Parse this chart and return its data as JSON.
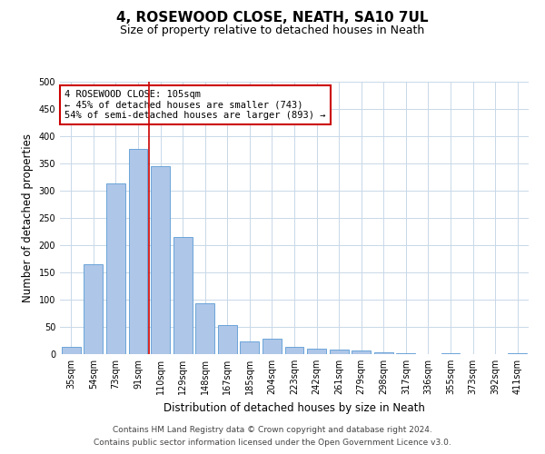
{
  "title": "4, ROSEWOOD CLOSE, NEATH, SA10 7UL",
  "subtitle": "Size of property relative to detached houses in Neath",
  "xlabel": "Distribution of detached houses by size in Neath",
  "ylabel": "Number of detached properties",
  "footer_line1": "Contains HM Land Registry data © Crown copyright and database right 2024.",
  "footer_line2": "Contains public sector information licensed under the Open Government Licence v3.0.",
  "annotation_line1": "4 ROSEWOOD CLOSE: 105sqm",
  "annotation_line2": "← 45% of detached houses are smaller (743)",
  "annotation_line3": "54% of semi-detached houses are larger (893) →",
  "bar_labels": [
    "35sqm",
    "54sqm",
    "73sqm",
    "91sqm",
    "110sqm",
    "129sqm",
    "148sqm",
    "167sqm",
    "185sqm",
    "204sqm",
    "223sqm",
    "242sqm",
    "261sqm",
    "279sqm",
    "298sqm",
    "317sqm",
    "336sqm",
    "355sqm",
    "373sqm",
    "392sqm",
    "411sqm"
  ],
  "bar_values": [
    13,
    165,
    313,
    377,
    345,
    215,
    93,
    54,
    24,
    28,
    13,
    10,
    8,
    6,
    4,
    1,
    0,
    1,
    0,
    0,
    2
  ],
  "bar_color": "#aec6e8",
  "bar_edge_color": "#5b9bd5",
  "red_line_x": 3.5,
  "red_line_color": "#cc0000",
  "annotation_box_edge_color": "#cc0000",
  "annotation_box_face_color": "#ffffff",
  "grid_color": "#c8d8e8",
  "bg_color": "#ffffff",
  "ylim": [
    0,
    500
  ],
  "yticks": [
    0,
    50,
    100,
    150,
    200,
    250,
    300,
    350,
    400,
    450,
    500
  ],
  "title_fontsize": 11,
  "subtitle_fontsize": 9,
  "axis_label_fontsize": 8.5,
  "tick_fontsize": 7,
  "annotation_fontsize": 7.5,
  "footer_fontsize": 6.5
}
